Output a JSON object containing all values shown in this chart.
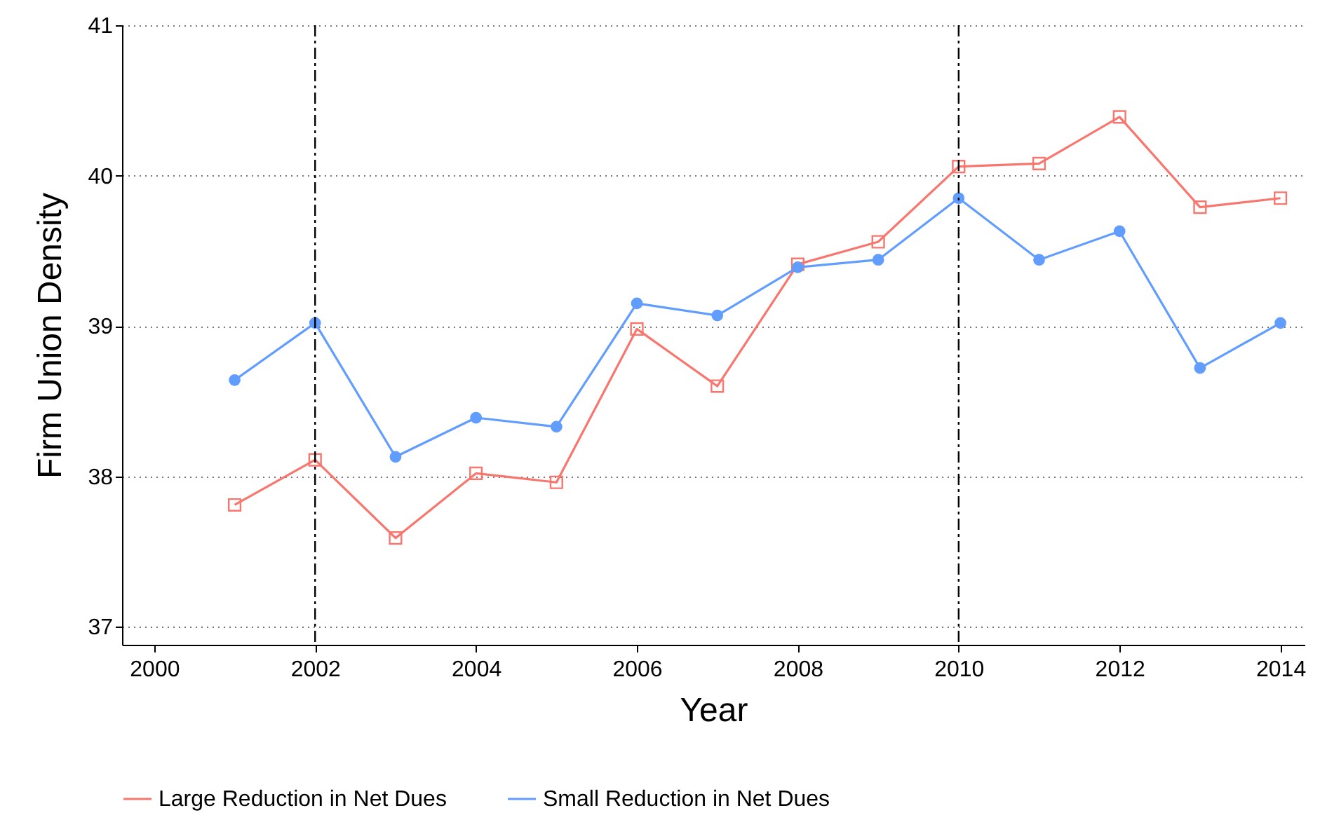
{
  "chart_data": {
    "type": "line",
    "xlabel": "Year",
    "ylabel": "Firm Union Density",
    "x": [
      2001,
      2002,
      2003,
      2004,
      2005,
      2006,
      2007,
      2008,
      2009,
      2010,
      2011,
      2012,
      2013,
      2014
    ],
    "series": [
      {
        "name": "Large Reduction in Net Dues",
        "color": "#f8766d",
        "marker": "square",
        "values": [
          37.81,
          38.11,
          37.59,
          38.02,
          37.96,
          38.98,
          38.6,
          39.41,
          39.56,
          40.06,
          40.08,
          40.39,
          39.79,
          39.85
        ]
      },
      {
        "name": "Small Reduction in Net Dues",
        "color": "#619cff",
        "marker": "circle",
        "values": [
          38.64,
          39.02,
          38.13,
          38.39,
          38.33,
          39.15,
          39.07,
          39.39,
          39.44,
          39.85,
          39.44,
          39.63,
          38.72,
          39.02
        ]
      }
    ],
    "xlim": [
      1999.6,
      2014.3
    ],
    "xticks": [
      2000,
      2002,
      2004,
      2006,
      2008,
      2010,
      2012,
      2014
    ],
    "ylim": [
      36.88,
      41
    ],
    "yticks": [
      37,
      38,
      39,
      40,
      41
    ],
    "ref_lines": [
      {
        "axis": "x",
        "value": 2002,
        "color": "#000000",
        "line_style": "dashed"
      },
      {
        "axis": "x",
        "value": 2010,
        "color": "#000000",
        "line_style": "dashed"
      }
    ],
    "grid": "y",
    "legend": "bottom",
    "line_style": "solid"
  }
}
